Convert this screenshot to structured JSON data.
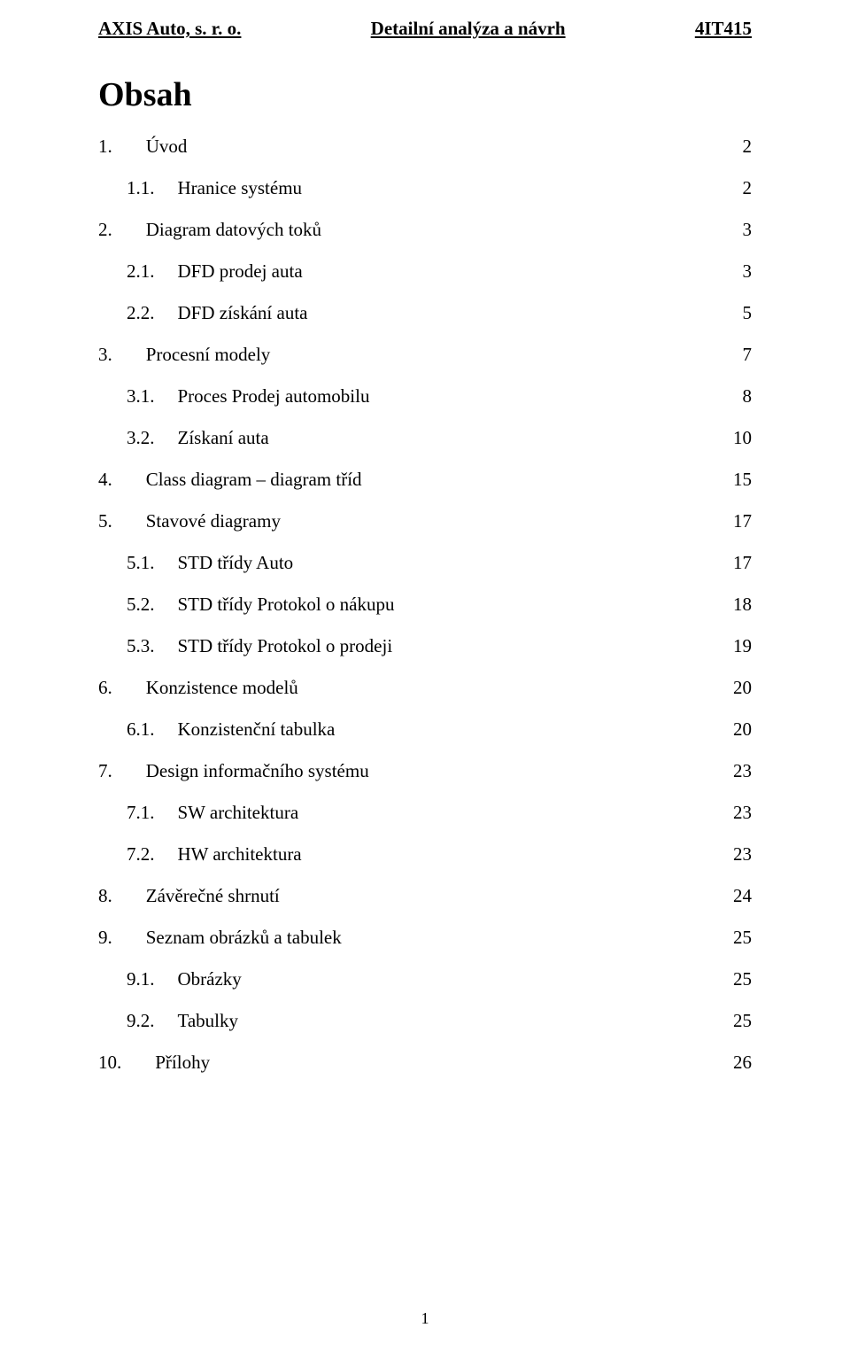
{
  "header": {
    "left": "AXIS Auto, s. r. o.",
    "center": "Detailní analýza a návrh",
    "right": "4IT415"
  },
  "title": "Obsah",
  "footer_page_number": "1",
  "colors": {
    "text": "#000000",
    "background": "#ffffff"
  },
  "typography": {
    "body_font_family": "Times New Roman",
    "header_fontsize_pt": 16,
    "title_fontsize_pt": 28,
    "toc_fontsize_pt": 16,
    "footer_fontsize_pt": 13
  },
  "toc": [
    {
      "level": 1,
      "num": "1.",
      "label": "Úvod",
      "page": "2"
    },
    {
      "level": 2,
      "num": "1.1.",
      "label": "Hranice systému",
      "page": "2"
    },
    {
      "level": 1,
      "num": "2.",
      "label": "Diagram datových toků",
      "page": "3"
    },
    {
      "level": 2,
      "num": "2.1.",
      "label": "DFD prodej auta",
      "page": "3"
    },
    {
      "level": 2,
      "num": "2.2.",
      "label": "DFD získání auta",
      "page": "5"
    },
    {
      "level": 1,
      "num": "3.",
      "label": "Procesní modely",
      "page": "7"
    },
    {
      "level": 2,
      "num": "3.1.",
      "label": "Proces Prodej automobilu",
      "page": "8"
    },
    {
      "level": 2,
      "num": "3.2.",
      "label": "Získaní auta",
      "page": "10"
    },
    {
      "level": 1,
      "num": "4.",
      "label": "Class diagram – diagram tříd",
      "page": "15"
    },
    {
      "level": 1,
      "num": "5.",
      "label": "Stavové diagramy",
      "page": "17"
    },
    {
      "level": 2,
      "num": "5.1.",
      "label": "STD třídy Auto",
      "page": "17"
    },
    {
      "level": 2,
      "num": "5.2.",
      "label": "STD třídy Protokol o nákupu",
      "page": "18"
    },
    {
      "level": 2,
      "num": "5.3.",
      "label": "STD třídy Protokol o prodeji",
      "page": "19"
    },
    {
      "level": 1,
      "num": "6.",
      "label": "Konzistence modelů",
      "page": "20"
    },
    {
      "level": 2,
      "num": "6.1.",
      "label": "Konzistenční tabulka",
      "page": "20"
    },
    {
      "level": 1,
      "num": "7.",
      "label": "Design informačního systému",
      "page": "23"
    },
    {
      "level": 2,
      "num": "7.1.",
      "label": "SW architektura",
      "page": "23"
    },
    {
      "level": 2,
      "num": "7.2.",
      "label": "HW architektura",
      "page": "23"
    },
    {
      "level": 1,
      "num": "8.",
      "label": "Závěrečné shrnutí",
      "page": "24"
    },
    {
      "level": 1,
      "num": "9.",
      "label": "Seznam obrázků a tabulek",
      "page": "25"
    },
    {
      "level": 2,
      "num": "9.1.",
      "label": "Obrázky",
      "page": "25"
    },
    {
      "level": 2,
      "num": "9.2.",
      "label": "Tabulky",
      "page": "25"
    },
    {
      "level": 1,
      "num": "10.",
      "label": "Přílohy",
      "page": "26"
    }
  ]
}
